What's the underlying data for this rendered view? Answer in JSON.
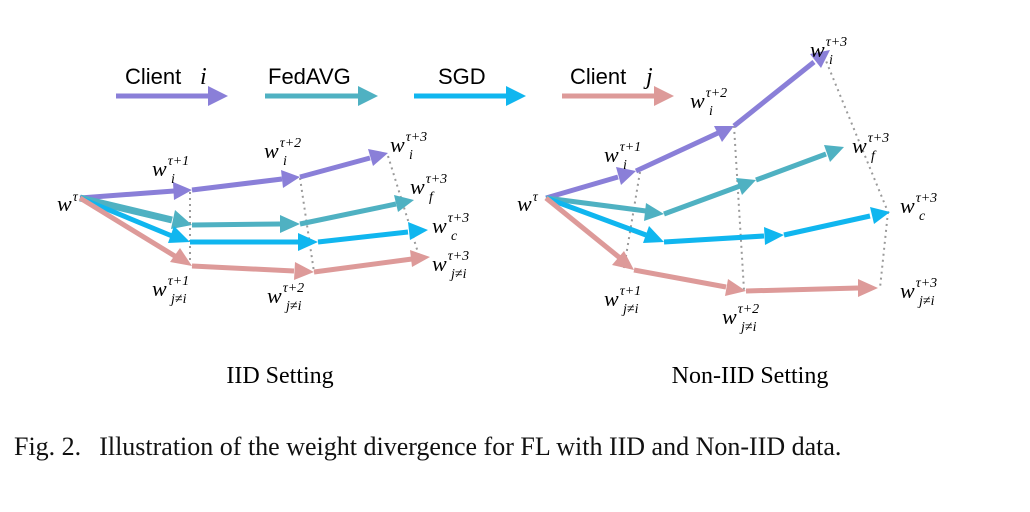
{
  "legend": {
    "client_i": "Client",
    "client_i_var": "i",
    "fedavg": "FedAVG",
    "sgd": "SGD",
    "client_j": "Client",
    "client_j_var": "j"
  },
  "colors": {
    "client_i": "#8a7fd8",
    "fedavg": "#4fb1c2",
    "sgd": "#10b6ef",
    "client_j": "#dd9a99",
    "dotted": "#9a9a9a"
  },
  "panels": {
    "iid": {
      "title": "IID Setting"
    },
    "noniid": {
      "title": "Non-IID Setting"
    }
  },
  "symbols": {
    "w": "w",
    "tau": "τ",
    "tau_p1": "τ+1",
    "tau_p2": "τ+2",
    "tau_p3": "τ+3",
    "sub_i": "i",
    "sub_f": "f",
    "sub_c": "c",
    "sub_jneqi": "j≠i"
  },
  "caption": {
    "label": "Fig. 2.",
    "text": "Illustration of the weight divergence for FL with IID and Non-IID data."
  }
}
